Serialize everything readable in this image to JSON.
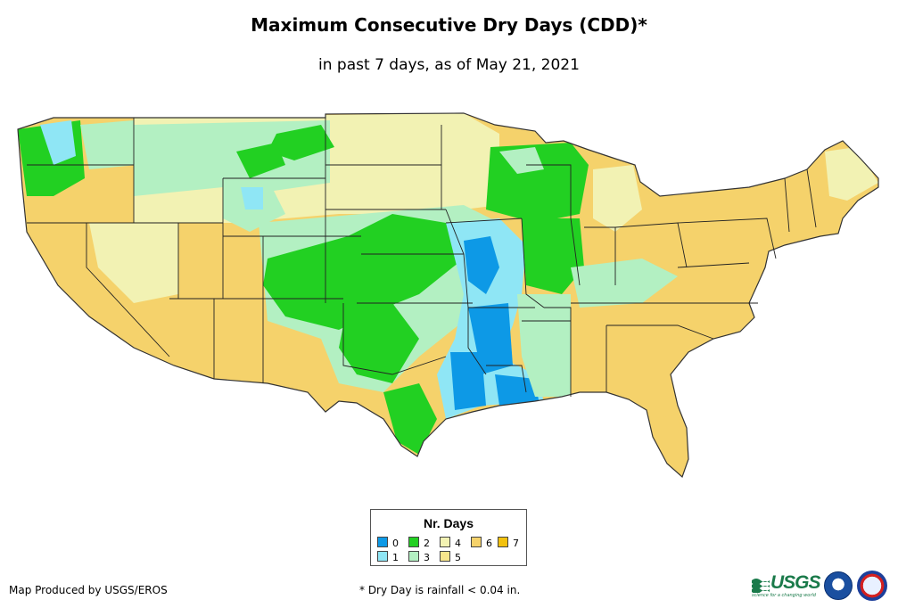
{
  "title": "Maximum Consecutive Dry Days (CDD)*",
  "subtitle": "in past 7 days, as of May 21, 2021",
  "legend": {
    "title": "Nr. Days",
    "items": [
      {
        "label": "0",
        "color": "#0d99e6"
      },
      {
        "label": "1",
        "color": "#8fe6f5"
      },
      {
        "label": "2",
        "color": "#22d022"
      },
      {
        "label": "3",
        "color": "#b3f0c2"
      },
      {
        "label": "4",
        "color": "#f2f2b3"
      },
      {
        "label": "5",
        "color": "#f8e68c"
      },
      {
        "label": "6",
        "color": "#f5d26b"
      },
      {
        "label": "7",
        "color": "#f2c10e"
      }
    ]
  },
  "footer": {
    "producer": "Map Produced by USGS/EROS",
    "note": "* Dry Day is rainfall < 0.04 in."
  },
  "logos": {
    "usgs": "USGS",
    "usgs_tagline": "science for a changing world"
  },
  "icons": [
    "usgs-logo-icon",
    "noaa-logo-icon",
    "nws-logo-icon"
  ]
}
